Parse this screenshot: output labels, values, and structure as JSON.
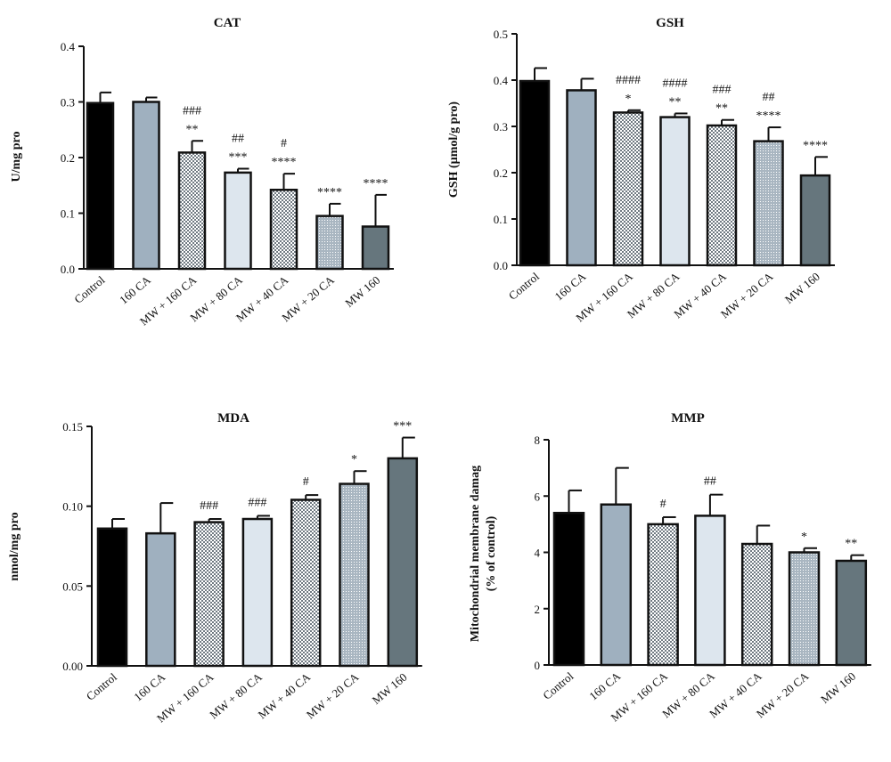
{
  "colors": {
    "control": "#000000",
    "ca160": "#9fb0bf",
    "mw_ca160": "#c5cfd8",
    "mw_ca80": "#dde6ee",
    "mw_ca40": "#b7c0c8",
    "mw_ca20": "#a9b6c1",
    "mw160": "#66767d",
    "axis": "#111111",
    "pattern_dark": "#707a82",
    "pattern_light": "#ffffff"
  },
  "chart_data": [
    {
      "type": "bar",
      "title": "CAT",
      "ylabel": "U/mg pro",
      "ylim": [
        0,
        0.4
      ],
      "yticks": [
        "0.0",
        "0.1",
        "0.2",
        "0.3",
        "0.4"
      ],
      "categories": [
        "Control",
        "160 CA",
        "MW + 160 CA",
        "MW + 80 CA",
        "MW + 40 CA",
        "MW + 20 CA",
        "MW 160"
      ],
      "values": [
        0.298,
        0.3,
        0.209,
        0.173,
        0.142,
        0.095,
        0.076
      ],
      "errors": [
        0.019,
        0.008,
        0.021,
        0.007,
        0.029,
        0.022,
        0.057
      ],
      "marks_star": [
        "",
        "",
        "**",
        "***",
        "****",
        "****",
        "****"
      ],
      "marks_hash": [
        "",
        "",
        "###",
        "##",
        "#",
        "",
        ""
      ],
      "grid": false
    },
    {
      "type": "bar",
      "title": "GSH",
      "ylabel": "GSH (µmol/g pro)",
      "ylim": [
        0,
        0.5
      ],
      "yticks": [
        "0.0",
        "0.1",
        "0.2",
        "0.3",
        "0.4",
        "0.5"
      ],
      "categories": [
        "Control",
        "160 CA",
        "MW + 160 CA",
        "MW + 80 CA",
        "MW + 40 CA",
        "MW + 20 CA",
        "MW 160"
      ],
      "values": [
        0.398,
        0.378,
        0.33,
        0.32,
        0.302,
        0.268,
        0.194
      ],
      "errors": [
        0.028,
        0.025,
        0.005,
        0.008,
        0.012,
        0.03,
        0.04
      ],
      "marks_star": [
        "",
        "",
        "*",
        "**",
        "**",
        "****",
        "****"
      ],
      "marks_hash": [
        "",
        "",
        "####",
        "####",
        "###",
        "##",
        ""
      ],
      "grid": false
    },
    {
      "type": "bar",
      "title": "MDA",
      "ylabel": "nmol/mg pro",
      "ylim": [
        0,
        0.15
      ],
      "yticks": [
        "0.00",
        "0.05",
        "0.10",
        "0.15"
      ],
      "categories": [
        "Control",
        "160 CA",
        "MW + 160 CA",
        "MW + 80 CA",
        "MW + 40 CA",
        "MW + 20 CA",
        "MW 160"
      ],
      "values": [
        0.086,
        0.083,
        0.09,
        0.092,
        0.104,
        0.114,
        0.13
      ],
      "errors": [
        0.006,
        0.019,
        0.002,
        0.002,
        0.003,
        0.008,
        0.013
      ],
      "marks_star": [
        "",
        "",
        "",
        "",
        "",
        "*",
        "***"
      ],
      "marks_hash": [
        "",
        "",
        "###",
        "###",
        "#",
        "",
        ""
      ],
      "grid": false
    },
    {
      "type": "bar",
      "title": "MMP",
      "ylabel": "Mitochondrial membrane damag",
      "ylabel2": "(% of control)",
      "ylim": [
        0,
        8
      ],
      "yticks": [
        "0",
        "2",
        "4",
        "6",
        "8"
      ],
      "categories": [
        "Control",
        "160 CA",
        "MW + 160 CA",
        "MW + 80 CA",
        "MW + 40 CA",
        "MW + 20 CA",
        "MW 160"
      ],
      "values": [
        5.4,
        5.7,
        5.0,
        5.3,
        4.3,
        4.0,
        3.7
      ],
      "errors": [
        0.8,
        1.3,
        0.25,
        0.75,
        0.65,
        0.15,
        0.2
      ],
      "marks_star": [
        "",
        "",
        "",
        "",
        "",
        "*",
        "**"
      ],
      "marks_hash": [
        "",
        "",
        "#",
        "##",
        "",
        "",
        ""
      ],
      "grid": false
    }
  ]
}
